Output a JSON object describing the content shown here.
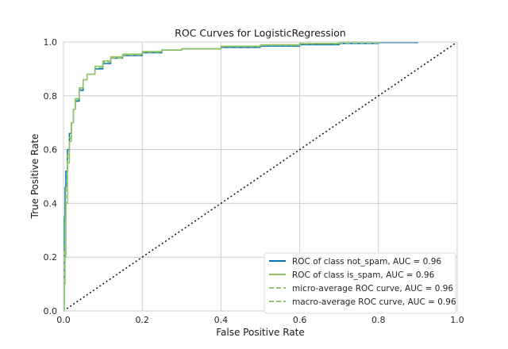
{
  "chart_data": {
    "type": "line",
    "title": "ROC Curves for LogisticRegression",
    "xlabel": "False Positive Rate",
    "ylabel": "True Positive Rate",
    "xlim": [
      0,
      1
    ],
    "ylim": [
      0,
      1
    ],
    "xticks": [
      "0.0",
      "0.2",
      "0.4",
      "0.6",
      "0.8",
      "1.0"
    ],
    "yticks": [
      "0.0",
      "0.2",
      "0.4",
      "0.6",
      "0.8",
      "1.0"
    ],
    "grid": true,
    "legend_position": "bottom-right",
    "series": [
      {
        "name": "ROC of class not_spam, AUC = 0.96",
        "color": "#0072b2",
        "dash": "solid",
        "x": [
          0,
          0.002,
          0.004,
          0.006,
          0.01,
          0.015,
          0.02,
          0.025,
          0.03,
          0.04,
          0.05,
          0.06,
          0.08,
          0.1,
          0.12,
          0.15,
          0.2,
          0.25,
          0.3,
          0.4,
          0.5,
          0.6,
          0.7,
          0.8,
          0.9
        ],
        "y": [
          0.0,
          0.35,
          0.46,
          0.52,
          0.6,
          0.66,
          0.7,
          0.75,
          0.78,
          0.82,
          0.86,
          0.88,
          0.9,
          0.92,
          0.94,
          0.95,
          0.96,
          0.97,
          0.975,
          0.98,
          0.985,
          0.99,
          0.995,
          0.998,
          1.0
        ]
      },
      {
        "name": "ROC of class is_spam, AUC = 0.96",
        "color": "#8fc566",
        "dash": "solid",
        "x": [
          0,
          0.002,
          0.004,
          0.006,
          0.01,
          0.015,
          0.02,
          0.025,
          0.03,
          0.04,
          0.05,
          0.06,
          0.08,
          0.1,
          0.12,
          0.15,
          0.2,
          0.25,
          0.3,
          0.4,
          0.5,
          0.6,
          0.7,
          0.8
        ],
        "y": [
          0.0,
          0.1,
          0.2,
          0.4,
          0.55,
          0.63,
          0.7,
          0.75,
          0.79,
          0.83,
          0.86,
          0.88,
          0.91,
          0.93,
          0.945,
          0.955,
          0.965,
          0.97,
          0.975,
          0.985,
          0.99,
          0.995,
          1.0,
          1.0
        ]
      },
      {
        "name": "micro-average ROC curve, AUC = 0.96",
        "color": "#8fc566",
        "dash": "dashed",
        "x": [
          0,
          0.002,
          0.004,
          0.006,
          0.01,
          0.015,
          0.02,
          0.025,
          0.03,
          0.04,
          0.05,
          0.06,
          0.08,
          0.1,
          0.12,
          0.15,
          0.2,
          0.25,
          0.3,
          0.4,
          0.5,
          0.6,
          0.7,
          0.8
        ],
        "y": [
          0.0,
          0.2,
          0.35,
          0.45,
          0.57,
          0.64,
          0.7,
          0.75,
          0.785,
          0.825,
          0.86,
          0.88,
          0.905,
          0.925,
          0.94,
          0.952,
          0.962,
          0.97,
          0.975,
          0.983,
          0.988,
          0.993,
          0.997,
          1.0
        ]
      },
      {
        "name": "macro-average ROC curve, AUC = 0.96",
        "color": "#8fc566",
        "dash": "dashed",
        "x": [
          0,
          0.002,
          0.004,
          0.006,
          0.01,
          0.015,
          0.02,
          0.025,
          0.03,
          0.04,
          0.05,
          0.06,
          0.08,
          0.1,
          0.12,
          0.15,
          0.2,
          0.25,
          0.3,
          0.4,
          0.5,
          0.6,
          0.7,
          0.8
        ],
        "y": [
          0.0,
          0.22,
          0.33,
          0.46,
          0.58,
          0.645,
          0.7,
          0.75,
          0.785,
          0.825,
          0.86,
          0.88,
          0.905,
          0.927,
          0.942,
          0.953,
          0.963,
          0.97,
          0.975,
          0.983,
          0.988,
          0.993,
          0.997,
          1.0
        ]
      }
    ],
    "reference_line": {
      "x": [
        0,
        1
      ],
      "y": [
        0,
        1
      ],
      "color": "#1a1a1a",
      "dash": "dotted"
    }
  }
}
